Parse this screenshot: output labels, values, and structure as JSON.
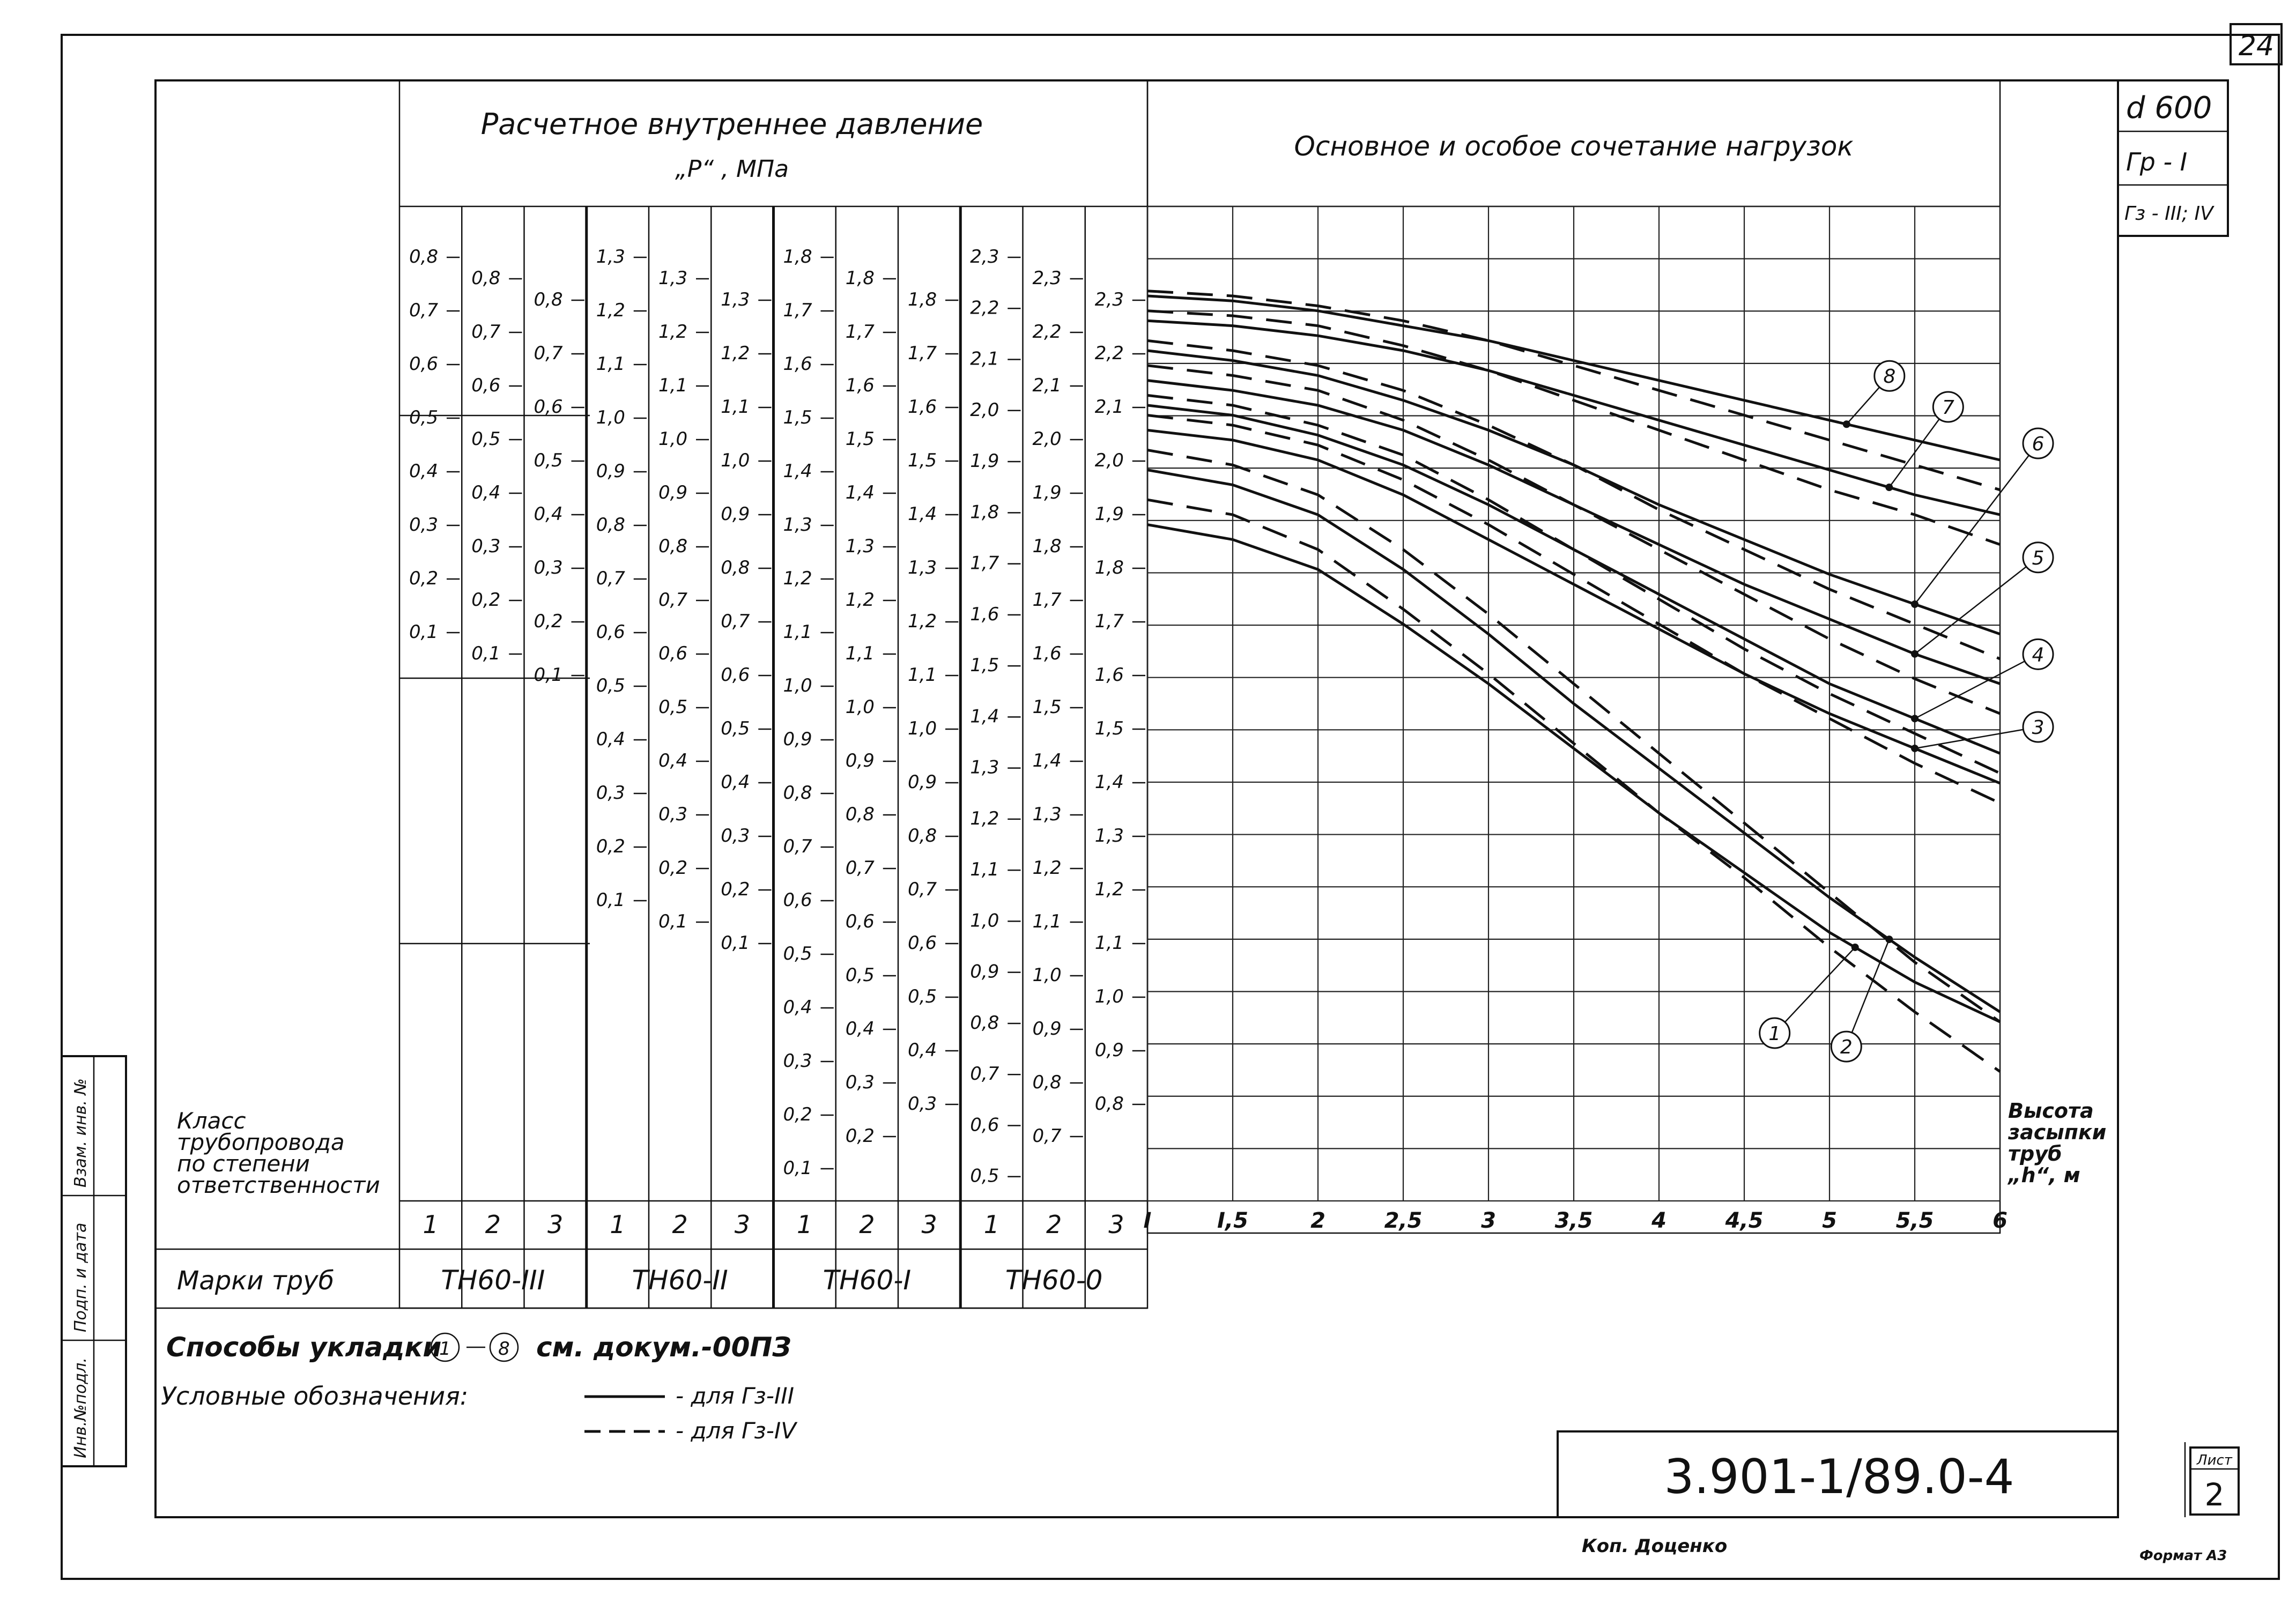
{
  "sheet": {
    "sheet_number_top": "24",
    "diameter": "d 600",
    "ground_label": "Гр - I",
    "water_label": "Гз - III; IV",
    "document_code": "3.901-1/89.0-4",
    "sheet_label": "Лист",
    "sheet_no": "2",
    "copied_by": "Коп. Доценко",
    "format": "Формат А3",
    "side_stamp_1": "Инв.№подл.",
    "side_stamp_2": "Подп. и дата",
    "side_stamp_3": "Взам. инв. №"
  },
  "pressure_header": {
    "line1": "Расчетное внутреннее давление",
    "line2": "„P“ , МПа"
  },
  "chart_header": "Основное и особое сочетание нагрузок",
  "row_labels": {
    "class_label": [
      "Класс",
      "трубопровода",
      "по степени",
      "ответственности"
    ],
    "marks_label": "Марки труб"
  },
  "pipe_groups": [
    {
      "mark": "ТН60-III",
      "columns": [
        {
          "class": "1",
          "ticks": [
            "0,8",
            "0,7",
            "0,6",
            "0,5",
            "0,4",
            "0,3",
            "0,2",
            "0,1"
          ]
        },
        {
          "class": "2",
          "ticks": [
            "0,8",
            "0,7",
            "0,6",
            "0,5",
            "0,4",
            "0,3",
            "0,2",
            "0,1"
          ]
        },
        {
          "class": "3",
          "ticks": [
            "0,8",
            "0,7",
            "0,6",
            "0,5",
            "0,4",
            "0,3",
            "0,2",
            "0,1"
          ]
        }
      ]
    },
    {
      "mark": "ТН60-II",
      "columns": [
        {
          "class": "1",
          "ticks": [
            "1,3",
            "1,2",
            "1,1",
            "1,0",
            "0,9",
            "0,8",
            "0,7",
            "0,6",
            "0,5",
            "0,4",
            "0,3",
            "0,2",
            "0,1"
          ]
        },
        {
          "class": "2",
          "ticks": [
            "1,3",
            "1,2",
            "1,1",
            "1,0",
            "0,9",
            "0,8",
            "0,7",
            "0,6",
            "0,5",
            "0,4",
            "0,3",
            "0,2",
            "0,1"
          ]
        },
        {
          "class": "3",
          "ticks": [
            "1,3",
            "1,2",
            "1,1",
            "1,0",
            "0,9",
            "0,8",
            "0,7",
            "0,6",
            "0,5",
            "0,4",
            "0,3",
            "0,2",
            "0,1"
          ]
        }
      ]
    },
    {
      "mark": "ТН60-I",
      "columns": [
        {
          "class": "1",
          "ticks": [
            "1,8",
            "1,7",
            "1,6",
            "1,5",
            "1,4",
            "1,3",
            "1,2",
            "1,1",
            "1,0",
            "0,9",
            "0,8",
            "0,7",
            "0,6",
            "0,5",
            "0,4",
            "0,3",
            "0,2",
            "0,1"
          ]
        },
        {
          "class": "2",
          "ticks": [
            "1,8",
            "1,7",
            "1,6",
            "1,5",
            "1,4",
            "1,3",
            "1,2",
            "1,1",
            "1,0",
            "0,9",
            "0,8",
            "0,7",
            "0,6",
            "0,5",
            "0,4",
            "0,3",
            "0,2"
          ]
        },
        {
          "class": "3",
          "ticks": [
            "1,8",
            "1,7",
            "1,6",
            "1,5",
            "1,4",
            "1,3",
            "1,2",
            "1,1",
            "1,0",
            "0,9",
            "0,8",
            "0,7",
            "0,6",
            "0,5",
            "0,4",
            "0,3"
          ]
        }
      ]
    },
    {
      "mark": "ТН60-0",
      "columns": [
        {
          "class": "1",
          "ticks": [
            "2,3",
            "2,2",
            "2,1",
            "2,0",
            "1,9",
            "1,8",
            "1,7",
            "1,6",
            "1,5",
            "1,4",
            "1,3",
            "1,2",
            "1,1",
            "1,0",
            "0,9",
            "0,8",
            "0,7",
            "0,6",
            "0,5"
          ]
        },
        {
          "class": "2",
          "ticks": [
            "2,3",
            "2,2",
            "2,1",
            "2,0",
            "1,9",
            "1,8",
            "1,7",
            "1,6",
            "1,5",
            "1,4",
            "1,3",
            "1,2",
            "1,1",
            "1,0",
            "0,9",
            "0,8",
            "0,7"
          ]
        },
        {
          "class": "3",
          "ticks": [
            "2,3",
            "2,2",
            "2,1",
            "2,0",
            "1,9",
            "1,8",
            "1,7",
            "1,6",
            "1,5",
            "1,4",
            "1,3",
            "1,2",
            "1,1",
            "1,0",
            "0,9",
            "0,8"
          ]
        }
      ]
    }
  ],
  "notes": {
    "laying_prefix": "Способы укладки",
    "laying_from": "1",
    "laying_to": "8",
    "laying_suffix": "см. докум.-00ПЗ",
    "legend_title": "Условные обозначения:",
    "legend_solid": "- для Гз-III",
    "legend_dashed": "- для Гз-IV"
  },
  "chart_data": {
    "type": "line",
    "title": "Основное и особое сочетание нагрузок",
    "xlabel": "Высота засыпки труб „h“, м",
    "ylabel": "",
    "x_ticks": [
      "I",
      "I,5",
      "2",
      "2,5",
      "3",
      "3,5",
      "4",
      "4,5",
      "5",
      "5,5",
      "6"
    ],
    "xlim": [
      1,
      6
    ],
    "ylim": [
      0,
      1
    ],
    "y_scale_note": "y is read on the pressure scales of the left panel; values are fractions of the panel height from bottom",
    "grid": true,
    "series": [
      {
        "name": "1",
        "style": "solid",
        "x": [
          1,
          1.5,
          2,
          2.5,
          3,
          3.5,
          4,
          4.5,
          5,
          5.5,
          6
        ],
        "y": [
          0.68,
          0.665,
          0.635,
          0.58,
          0.52,
          0.455,
          0.39,
          0.33,
          0.27,
          0.22,
          0.18
        ]
      },
      {
        "name": "1",
        "style": "dashed",
        "x": [
          1,
          1.5,
          2,
          2.5,
          3,
          3.5,
          4,
          4.5,
          5,
          5.5,
          6
        ],
        "y": [
          0.705,
          0.69,
          0.655,
          0.595,
          0.53,
          0.46,
          0.39,
          0.325,
          0.255,
          0.19,
          0.13
        ]
      },
      {
        "name": "2",
        "style": "solid",
        "x": [
          1,
          1.5,
          2,
          2.5,
          3,
          3.5,
          4,
          4.5,
          5,
          5.5,
          6
        ],
        "y": [
          0.735,
          0.72,
          0.69,
          0.635,
          0.57,
          0.5,
          0.435,
          0.37,
          0.305,
          0.245,
          0.19
        ]
      },
      {
        "name": "2",
        "style": "dashed",
        "x": [
          1,
          1.5,
          2,
          2.5,
          3,
          3.5,
          4,
          4.5,
          5,
          5.5,
          6
        ],
        "y": [
          0.755,
          0.74,
          0.71,
          0.655,
          0.59,
          0.52,
          0.45,
          0.38,
          0.31,
          0.24,
          0.18
        ]
      },
      {
        "name": "3",
        "style": "solid",
        "x": [
          1,
          1.5,
          2,
          2.5,
          3,
          3.5,
          4,
          4.5,
          5,
          5.5,
          6
        ],
        "y": [
          0.775,
          0.765,
          0.745,
          0.71,
          0.665,
          0.62,
          0.575,
          0.53,
          0.49,
          0.455,
          0.42
        ]
      },
      {
        "name": "3",
        "style": "dashed",
        "x": [
          1,
          1.5,
          2,
          2.5,
          3,
          3.5,
          4,
          4.5,
          5,
          5.5,
          6
        ],
        "y": [
          0.79,
          0.78,
          0.76,
          0.725,
          0.68,
          0.63,
          0.58,
          0.53,
          0.485,
          0.44,
          0.4
        ]
      },
      {
        "name": "4",
        "style": "solid",
        "x": [
          1,
          1.5,
          2,
          2.5,
          3,
          3.5,
          4,
          4.5,
          5,
          5.5,
          6
        ],
        "y": [
          0.8,
          0.79,
          0.77,
          0.74,
          0.7,
          0.655,
          0.61,
          0.565,
          0.52,
          0.485,
          0.45
        ]
      },
      {
        "name": "4",
        "style": "dashed",
        "x": [
          1,
          1.5,
          2,
          2.5,
          3,
          3.5,
          4,
          4.5,
          5,
          5.5,
          6
        ],
        "y": [
          0.81,
          0.8,
          0.78,
          0.75,
          0.705,
          0.655,
          0.605,
          0.555,
          0.51,
          0.47,
          0.43
        ]
      },
      {
        "name": "5",
        "style": "solid",
        "x": [
          1,
          1.5,
          2,
          2.5,
          3,
          3.5,
          4,
          4.5,
          5,
          5.5,
          6
        ],
        "y": [
          0.825,
          0.815,
          0.8,
          0.775,
          0.74,
          0.7,
          0.66,
          0.62,
          0.585,
          0.55,
          0.52
        ]
      },
      {
        "name": "5",
        "style": "dashed",
        "x": [
          1,
          1.5,
          2,
          2.5,
          3,
          3.5,
          4,
          4.5,
          5,
          5.5,
          6
        ],
        "y": [
          0.84,
          0.83,
          0.815,
          0.785,
          0.745,
          0.7,
          0.655,
          0.61,
          0.565,
          0.525,
          0.49
        ]
      },
      {
        "name": "6",
        "style": "solid",
        "x": [
          1,
          1.5,
          2,
          2.5,
          3,
          3.5,
          4,
          4.5,
          5,
          5.5,
          6
        ],
        "y": [
          0.855,
          0.845,
          0.83,
          0.805,
          0.775,
          0.74,
          0.7,
          0.665,
          0.63,
          0.6,
          0.57
        ]
      },
      {
        "name": "6",
        "style": "dashed",
        "x": [
          1,
          1.5,
          2,
          2.5,
          3,
          3.5,
          4,
          4.5,
          5,
          5.5,
          6
        ],
        "y": [
          0.865,
          0.855,
          0.84,
          0.815,
          0.78,
          0.74,
          0.695,
          0.655,
          0.615,
          0.58,
          0.545
        ]
      },
      {
        "name": "7",
        "style": "solid",
        "x": [
          1,
          1.5,
          2,
          2.5,
          3,
          3.5,
          4,
          4.5,
          5,
          5.5,
          6
        ],
        "y": [
          0.885,
          0.88,
          0.87,
          0.855,
          0.835,
          0.81,
          0.785,
          0.76,
          0.735,
          0.71,
          0.69
        ]
      },
      {
        "name": "7",
        "style": "dashed",
        "x": [
          1,
          1.5,
          2,
          2.5,
          3,
          3.5,
          4,
          4.5,
          5,
          5.5,
          6
        ],
        "y": [
          0.895,
          0.89,
          0.88,
          0.86,
          0.835,
          0.805,
          0.775,
          0.745,
          0.715,
          0.69,
          0.66
        ]
      },
      {
        "name": "8",
        "style": "solid",
        "x": [
          1,
          1.5,
          2,
          2.5,
          3,
          3.5,
          4,
          4.5,
          5,
          5.5,
          6
        ],
        "y": [
          0.91,
          0.905,
          0.895,
          0.88,
          0.865,
          0.845,
          0.825,
          0.805,
          0.785,
          0.765,
          0.745
        ]
      },
      {
        "name": "8",
        "style": "dashed",
        "x": [
          1,
          1.5,
          2,
          2.5,
          3,
          3.5,
          4,
          4.5,
          5,
          5.5,
          6
        ],
        "y": [
          0.915,
          0.91,
          0.9,
          0.885,
          0.865,
          0.84,
          0.815,
          0.79,
          0.765,
          0.74,
          0.715
        ]
      }
    ],
    "curve_labels": [
      {
        "name": "1",
        "at_x": 5.15,
        "on_series": 0
      },
      {
        "name": "2",
        "at_x": 5.35,
        "on_series": 2
      },
      {
        "name": "3",
        "at_x": 5.5,
        "on_series": 4
      },
      {
        "name": "4",
        "at_x": 5.5,
        "on_series": 6
      },
      {
        "name": "5",
        "at_x": 5.5,
        "on_series": 8
      },
      {
        "name": "6",
        "at_x": 5.5,
        "on_series": 10
      },
      {
        "name": "7",
        "at_x": 5.35,
        "on_series": 12
      },
      {
        "name": "8",
        "at_x": 5.1,
        "on_series": 14
      }
    ]
  }
}
